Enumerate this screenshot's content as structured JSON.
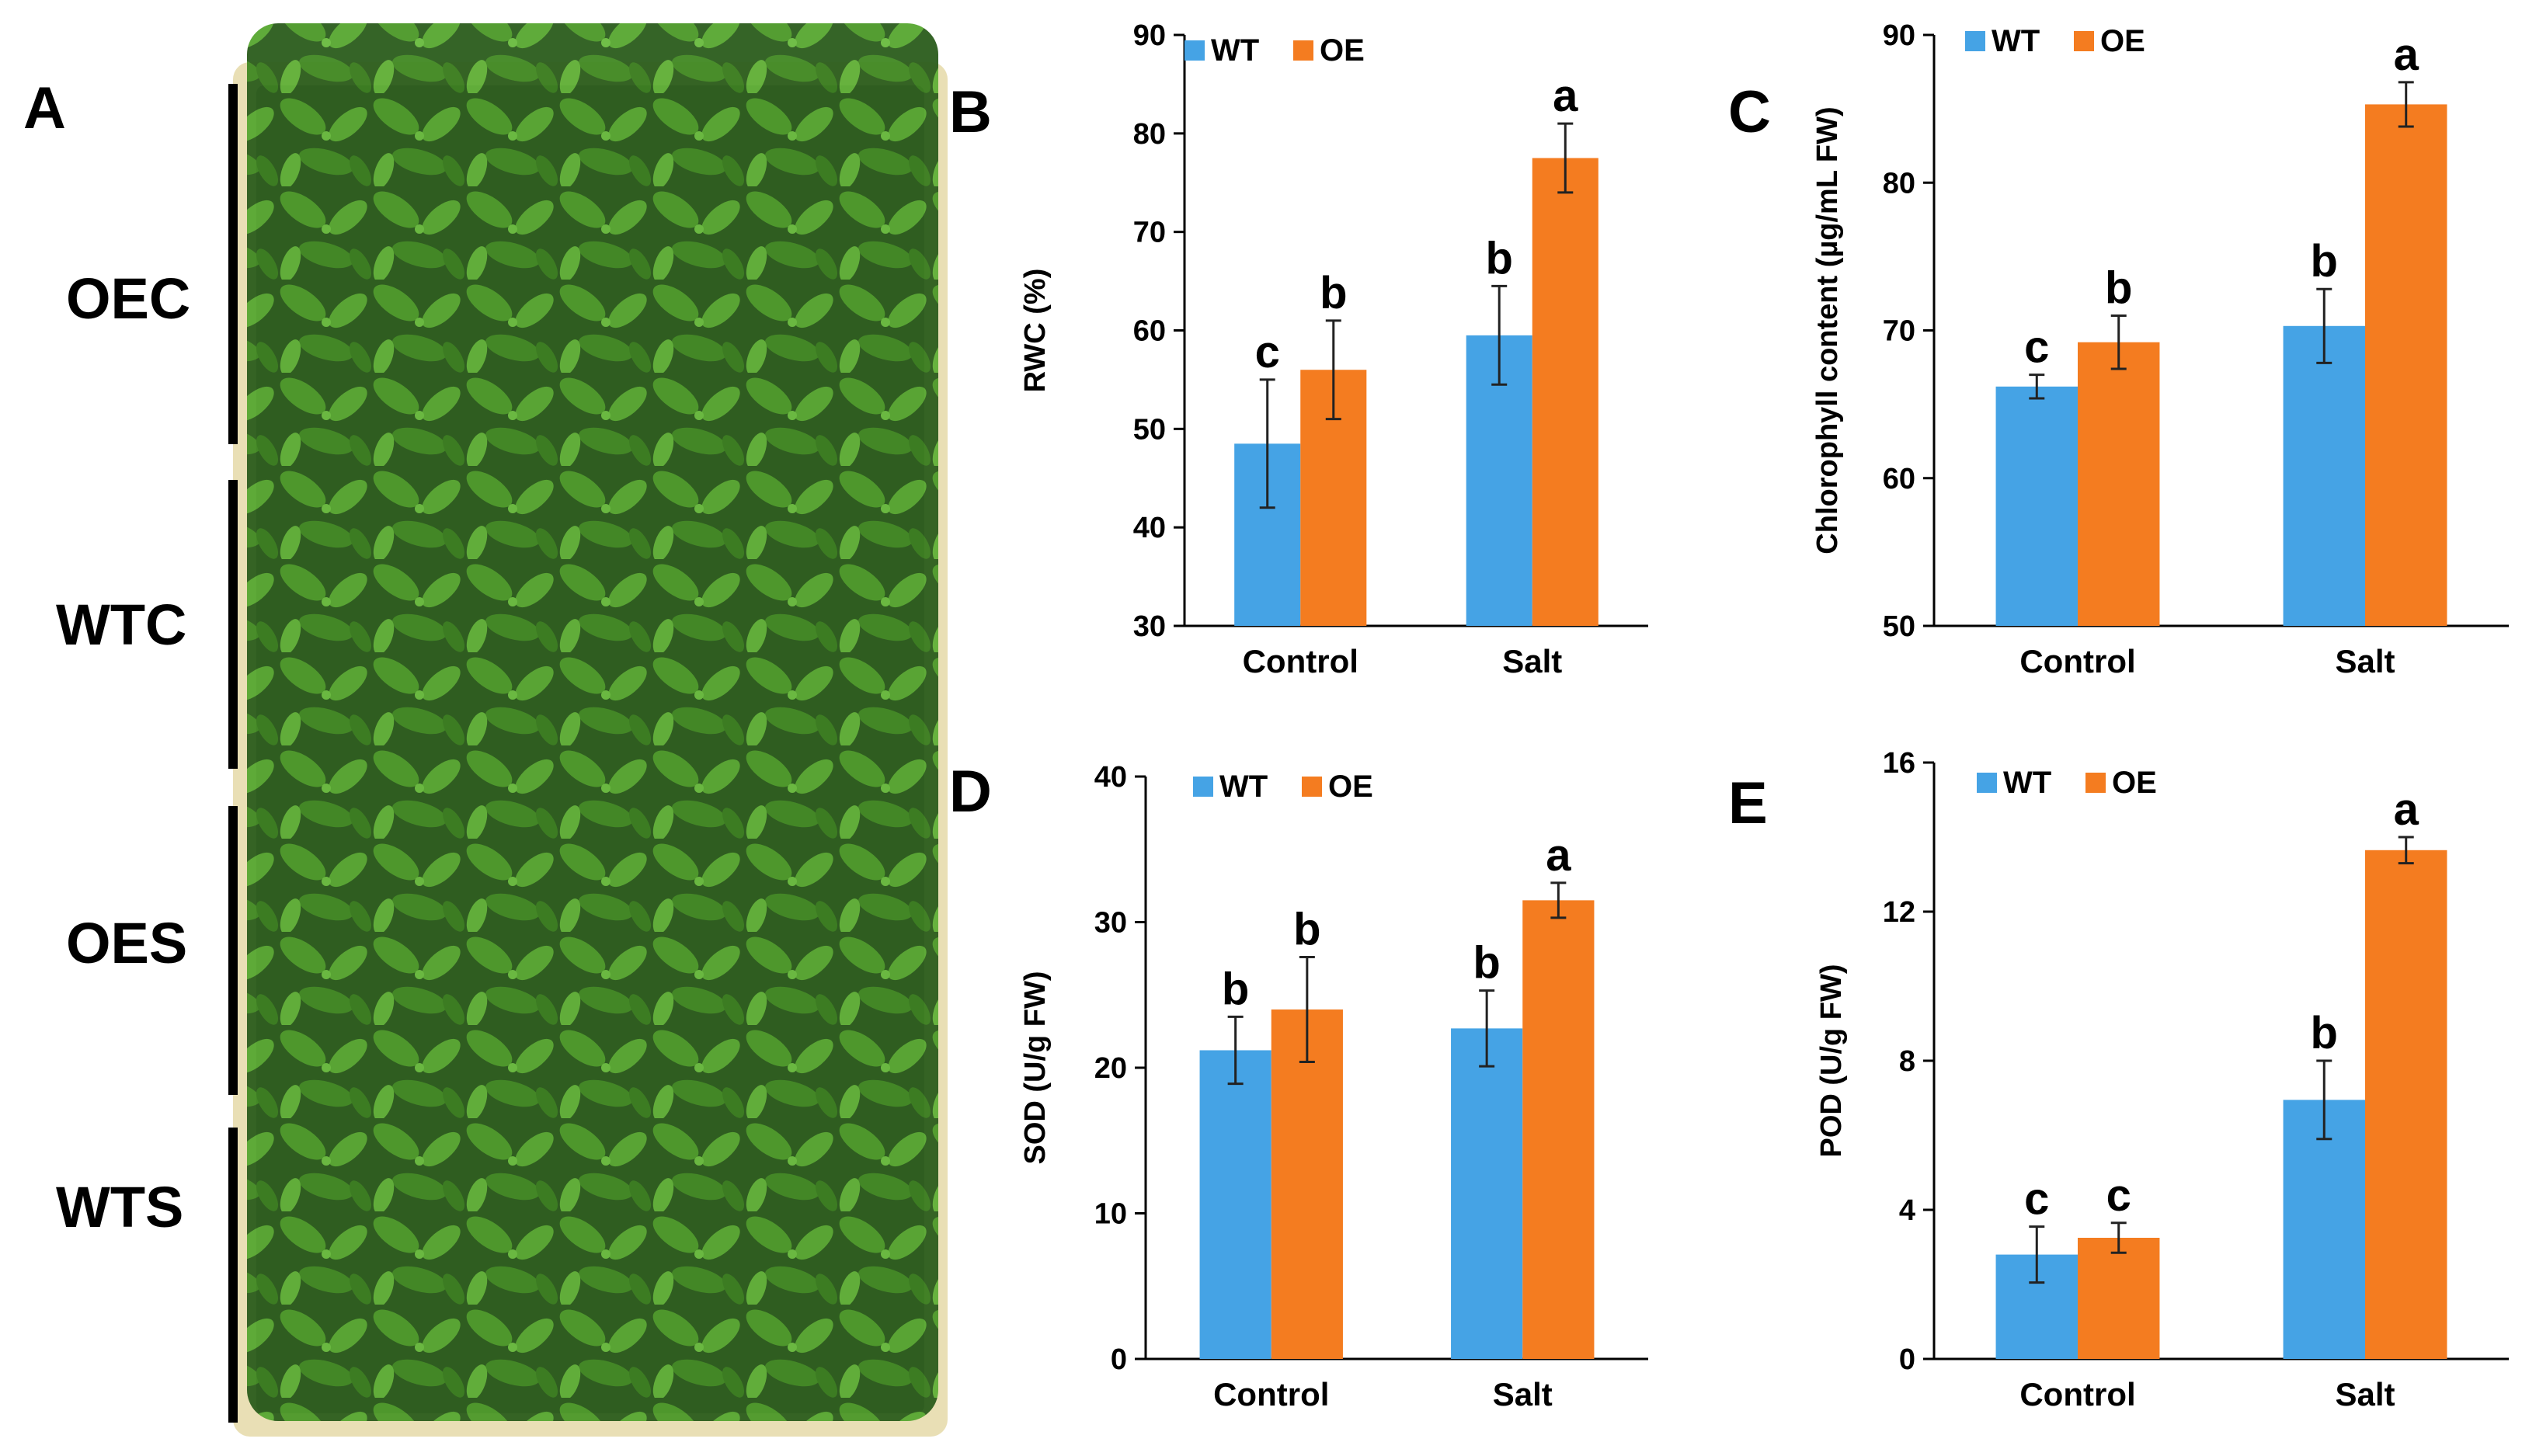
{
  "panel_a": {
    "label": "A",
    "groups": [
      "OEC",
      "WTC",
      "OES",
      "WTS"
    ]
  },
  "colors": {
    "WT": "#45a3e5",
    "OE": "#f47c20"
  },
  "chart_data": [
    {
      "panel": "B",
      "type": "bar",
      "categories": [
        "Control",
        "Salt"
      ],
      "ylabel": "RWC (%)",
      "ylim": [
        30,
        90
      ],
      "yticks": [
        30,
        40,
        50,
        60,
        70,
        80,
        90
      ],
      "legend": "top-left",
      "series": [
        {
          "name": "WT",
          "values": [
            48.5,
            59.5
          ],
          "errors": [
            6.5,
            5.0
          ],
          "letters": [
            "c",
            "b"
          ]
        },
        {
          "name": "OE",
          "values": [
            56,
            77.5
          ],
          "errors": [
            5.0,
            3.5
          ],
          "letters": [
            "b",
            "a"
          ]
        }
      ]
    },
    {
      "panel": "C",
      "type": "bar",
      "categories": [
        "Control",
        "Salt"
      ],
      "ylabel": "Chlorophyll content (µg/mL FW)",
      "ylim": [
        50,
        90
      ],
      "yticks": [
        50,
        60,
        70,
        80,
        90
      ],
      "legend": "top-left",
      "series": [
        {
          "name": "WT",
          "values": [
            66.2,
            70.3
          ],
          "errors": [
            0.8,
            2.5
          ],
          "letters": [
            "c",
            "b"
          ]
        },
        {
          "name": "OE",
          "values": [
            69.2,
            85.3
          ],
          "errors": [
            1.8,
            1.5
          ],
          "letters": [
            "b",
            "a"
          ]
        }
      ]
    },
    {
      "panel": "D",
      "type": "bar",
      "categories": [
        "Control",
        "Salt"
      ],
      "ylabel": "SOD (U/g FW)",
      "ylim": [
        0,
        40
      ],
      "yticks": [
        0,
        10,
        20,
        30,
        40
      ],
      "legend": "top-left",
      "series": [
        {
          "name": "WT",
          "values": [
            21.2,
            22.7
          ],
          "errors": [
            2.3,
            2.6
          ],
          "letters": [
            "b",
            "b"
          ]
        },
        {
          "name": "OE",
          "values": [
            24,
            31.5
          ],
          "errors": [
            3.6,
            1.2
          ],
          "letters": [
            "b",
            "a"
          ]
        }
      ]
    },
    {
      "panel": "E",
      "type": "bar",
      "categories": [
        "Control",
        "Salt"
      ],
      "ylabel": "POD (U/g FW)",
      "ylim": [
        0,
        16
      ],
      "yticks": [
        0,
        4,
        8,
        12,
        16
      ],
      "legend": "top-left",
      "series": [
        {
          "name": "WT",
          "values": [
            2.8,
            6.95
          ],
          "errors": [
            0.75,
            1.05
          ],
          "letters": [
            "c",
            "b"
          ]
        },
        {
          "name": "OE",
          "values": [
            3.25,
            13.65
          ],
          "errors": [
            0.4,
            0.35
          ],
          "letters": [
            "c",
            "a"
          ]
        }
      ]
    }
  ]
}
